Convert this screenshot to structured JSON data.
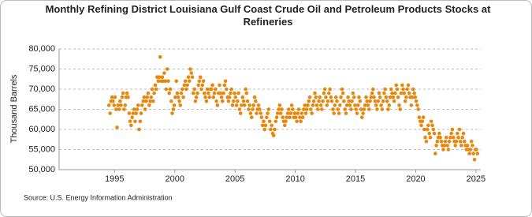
{
  "chart_data": {
    "type": "scatter",
    "title": "Monthly Refining District Louisiana Gulf Coast Crude Oil and Petroleum Products Stocks at Refineries",
    "y_label": "Thousand Barrels",
    "source": "Source: U.S. Energy Information Administration",
    "color": "#e8870e",
    "grid": true,
    "xlim": [
      1990.4,
      2025.4
    ],
    "xticks": [
      1995,
      2000,
      2005,
      2010,
      2015,
      2020,
      2025
    ],
    "ylim": [
      50000,
      80000
    ],
    "yticks": [
      {
        "value": 50000,
        "label": "50,000"
      },
      {
        "value": 55000,
        "label": "55,000"
      },
      {
        "value": 60000,
        "label": "60,000"
      },
      {
        "value": 65000,
        "label": "65,000"
      },
      {
        "value": 70000,
        "label": "70,000"
      },
      {
        "value": 75000,
        "label": "75,000"
      },
      {
        "value": 80000,
        "label": "80,000"
      }
    ],
    "x": [
      1994.54,
      1994.63,
      1994.71,
      1994.79,
      1994.88,
      1994.96,
      1995.04,
      1995.13,
      1995.21,
      1995.29,
      1995.38,
      1995.46,
      1995.54,
      1995.63,
      1995.71,
      1995.79,
      1995.88,
      1995.96,
      1996.04,
      1996.13,
      1996.21,
      1996.29,
      1996.38,
      1996.46,
      1996.54,
      1996.63,
      1996.71,
      1996.79,
      1996.88,
      1996.96,
      1997.04,
      1997.13,
      1997.21,
      1997.29,
      1997.38,
      1997.46,
      1997.54,
      1997.63,
      1997.71,
      1997.79,
      1997.88,
      1997.96,
      1998.04,
      1998.13,
      1998.21,
      1998.29,
      1998.38,
      1998.46,
      1998.54,
      1998.63,
      1998.71,
      1998.79,
      1998.88,
      1998.96,
      1999.04,
      1999.13,
      1999.21,
      1999.29,
      1999.38,
      1999.46,
      1999.54,
      1999.63,
      1999.71,
      1999.79,
      1999.88,
      1999.96,
      2000.04,
      2000.13,
      2000.21,
      2000.29,
      2000.38,
      2000.46,
      2000.54,
      2000.63,
      2000.71,
      2000.79,
      2000.88,
      2000.96,
      2001.04,
      2001.13,
      2001.21,
      2001.29,
      2001.38,
      2001.46,
      2001.54,
      2001.63,
      2001.71,
      2001.79,
      2001.88,
      2001.96,
      2002.04,
      2002.13,
      2002.21,
      2002.29,
      2002.38,
      2002.46,
      2002.54,
      2002.63,
      2002.71,
      2002.79,
      2002.88,
      2002.96,
      2003.04,
      2003.13,
      2003.21,
      2003.29,
      2003.38,
      2003.46,
      2003.54,
      2003.63,
      2003.71,
      2003.79,
      2003.88,
      2003.96,
      2004.04,
      2004.13,
      2004.21,
      2004.29,
      2004.38,
      2004.46,
      2004.54,
      2004.63,
      2004.71,
      2004.79,
      2004.88,
      2004.96,
      2005.04,
      2005.13,
      2005.21,
      2005.29,
      2005.38,
      2005.46,
      2005.54,
      2005.63,
      2005.71,
      2005.79,
      2005.88,
      2005.96,
      2006.04,
      2006.13,
      2006.21,
      2006.29,
      2006.38,
      2006.46,
      2006.54,
      2006.63,
      2006.71,
      2006.79,
      2006.88,
      2006.96,
      2007.04,
      2007.13,
      2007.21,
      2007.29,
      2007.38,
      2007.46,
      2007.54,
      2007.63,
      2007.71,
      2007.79,
      2007.88,
      2007.96,
      2008.04,
      2008.13,
      2008.21,
      2008.29,
      2008.38,
      2008.46,
      2008.54,
      2008.63,
      2008.71,
      2008.79,
      2008.88,
      2008.96,
      2009.04,
      2009.13,
      2009.21,
      2009.29,
      2009.38,
      2009.46,
      2009.54,
      2009.63,
      2009.71,
      2009.79,
      2009.88,
      2009.96,
      2010.04,
      2010.13,
      2010.21,
      2010.29,
      2010.38,
      2010.46,
      2010.54,
      2010.63,
      2010.71,
      2010.79,
      2010.88,
      2010.96,
      2011.04,
      2011.13,
      2011.21,
      2011.29,
      2011.38,
      2011.46,
      2011.54,
      2011.63,
      2011.71,
      2011.79,
      2011.88,
      2011.96,
      2012.04,
      2012.13,
      2012.21,
      2012.29,
      2012.38,
      2012.46,
      2012.54,
      2012.63,
      2012.71,
      2012.79,
      2012.88,
      2012.96,
      2013.04,
      2013.13,
      2013.21,
      2013.29,
      2013.38,
      2013.46,
      2013.54,
      2013.63,
      2013.71,
      2013.79,
      2013.88,
      2013.96,
      2014.04,
      2014.13,
      2014.21,
      2014.29,
      2014.38,
      2014.46,
      2014.54,
      2014.63,
      2014.71,
      2014.79,
      2014.88,
      2014.96,
      2015.04,
      2015.13,
      2015.21,
      2015.29,
      2015.38,
      2015.46,
      2015.54,
      2015.63,
      2015.71,
      2015.79,
      2015.88,
      2015.96,
      2016.04,
      2016.13,
      2016.21,
      2016.29,
      2016.38,
      2016.46,
      2016.54,
      2016.63,
      2016.71,
      2016.79,
      2016.88,
      2016.96,
      2017.04,
      2017.13,
      2017.21,
      2017.29,
      2017.38,
      2017.46,
      2017.54,
      2017.63,
      2017.71,
      2017.79,
      2017.88,
      2017.96,
      2018.04,
      2018.13,
      2018.21,
      2018.29,
      2018.38,
      2018.46,
      2018.54,
      2018.63,
      2018.71,
      2018.79,
      2018.88,
      2018.96,
      2019.04,
      2019.13,
      2019.21,
      2019.29,
      2019.38,
      2019.46,
      2019.54,
      2019.63,
      2019.71,
      2019.79,
      2019.88,
      2019.96,
      2020.04,
      2020.13,
      2020.21,
      2020.29,
      2020.38,
      2020.46,
      2020.54,
      2020.63,
      2020.71,
      2020.79,
      2020.88,
      2020.96,
      2021.04,
      2021.13,
      2021.21,
      2021.29,
      2021.38,
      2021.46,
      2021.54,
      2021.63,
      2021.71,
      2021.79,
      2021.88,
      2021.96,
      2022.04,
      2022.13,
      2022.21,
      2022.29,
      2022.38,
      2022.46,
      2022.54,
      2022.63,
      2022.71,
      2022.79,
      2022.88,
      2022.96,
      2023.04,
      2023.13,
      2023.21,
      2023.29,
      2023.38,
      2023.46,
      2023.54,
      2023.63,
      2023.71,
      2023.79,
      2023.88,
      2023.96,
      2024.04,
      2024.13,
      2024.21,
      2024.29,
      2024.38,
      2024.46,
      2024.54,
      2024.63,
      2024.71,
      2024.79,
      2024.88,
      2024.96,
      2025.04,
      2025.13
    ],
    "values": [
      66000,
      64000,
      67000,
      68000,
      67000,
      66000,
      68000,
      65000,
      60500,
      66000,
      65000,
      67000,
      66000,
      68000,
      69000,
      65000,
      66000,
      68000,
      69000,
      68000,
      64000,
      62000,
      61000,
      63000,
      64000,
      65000,
      62000,
      64000,
      65000,
      66000,
      60000,
      62000,
      64000,
      66000,
      67000,
      68000,
      65000,
      67000,
      68000,
      69000,
      66000,
      67000,
      68000,
      70000,
      67000,
      69000,
      71000,
      70000,
      73000,
      72000,
      73000,
      78000,
      72000,
      73000,
      72000,
      74000,
      72000,
      70000,
      75000,
      72000,
      69000,
      70000,
      67000,
      64000,
      65000,
      66000,
      68000,
      72000,
      69000,
      68000,
      67000,
      66000,
      69000,
      70000,
      68000,
      71000,
      72000,
      70000,
      71000,
      73000,
      72000,
      75000,
      74000,
      73000,
      69000,
      70000,
      67000,
      68000,
      69000,
      71000,
      72000,
      73000,
      70000,
      71000,
      72000,
      69000,
      68000,
      67000,
      70000,
      69000,
      68000,
      70000,
      70000,
      71000,
      68000,
      69000,
      70000,
      67000,
      66000,
      69000,
      71000,
      69000,
      68000,
      67000,
      69000,
      71000,
      72000,
      70000,
      68000,
      67000,
      68000,
      69000,
      70000,
      66000,
      67000,
      69000,
      68000,
      66000,
      67000,
      69000,
      65000,
      64000,
      66000,
      68000,
      67000,
      66000,
      70000,
      69000,
      67000,
      65000,
      66000,
      64000,
      63000,
      65000,
      66000,
      68000,
      67000,
      64000,
      65000,
      66000,
      65000,
      64000,
      63000,
      61000,
      62000,
      60000,
      61000,
      63000,
      64000,
      65000,
      62000,
      60000,
      61000,
      59000,
      58500,
      60000,
      62000,
      63000,
      64000,
      65000,
      66000,
      64000,
      65000,
      63000,
      62000,
      61000,
      62000,
      63000,
      64000,
      65000,
      63000,
      64000,
      66000,
      65000,
      63000,
      64000,
      63000,
      62000,
      64000,
      65000,
      63000,
      62000,
      64000,
      63000,
      65000,
      66000,
      64000,
      65000,
      66000,
      67000,
      68000,
      65000,
      64000,
      66000,
      67000,
      69000,
      68000,
      66000,
      65000,
      67000,
      68000,
      66000,
      65000,
      67000,
      69000,
      70000,
      68000,
      66000,
      67000,
      69000,
      70000,
      68000,
      67000,
      65000,
      64000,
      66000,
      68000,
      67000,
      65000,
      64000,
      66000,
      68000,
      70000,
      69000,
      67000,
      65000,
      64000,
      66000,
      68000,
      67000,
      66000,
      65000,
      67000,
      69000,
      68000,
      66000,
      65000,
      64000,
      66000,
      68000,
      67000,
      65000,
      63000,
      64000,
      65000,
      66000,
      68000,
      67000,
      66000,
      65000,
      67000,
      68000,
      69000,
      70000,
      68000,
      67000,
      66000,
      65000,
      67000,
      69000,
      68000,
      66000,
      65000,
      67000,
      69000,
      70000,
      68000,
      67000,
      65000,
      66000,
      68000,
      70000,
      69000,
      68000,
      67000,
      69000,
      71000,
      70000,
      68000,
      66000,
      65000,
      69000,
      71000,
      70000,
      69000,
      67000,
      68000,
      70000,
      71000,
      69000,
      68000,
      66000,
      68000,
      70000,
      69000,
      68000,
      67000,
      66000,
      65000,
      63000,
      62000,
      61000,
      62000,
      63000,
      60000,
      58000,
      57000,
      60000,
      61000,
      59000,
      58000,
      62000,
      61000,
      60000,
      59000,
      54000,
      56000,
      57000,
      58000,
      59000,
      58000,
      57000,
      56000,
      55000,
      56000,
      57000,
      58000,
      56000,
      55000,
      57000,
      58000,
      59000,
      60000,
      58000,
      57000,
      56000,
      57000,
      59000,
      58000,
      60000,
      57000,
      56000,
      58000,
      59000,
      57000,
      56000,
      55000,
      56000,
      55000,
      54000,
      55000,
      57000,
      56000,
      54000,
      52500,
      55000,
      55000,
      54000
    ]
  }
}
